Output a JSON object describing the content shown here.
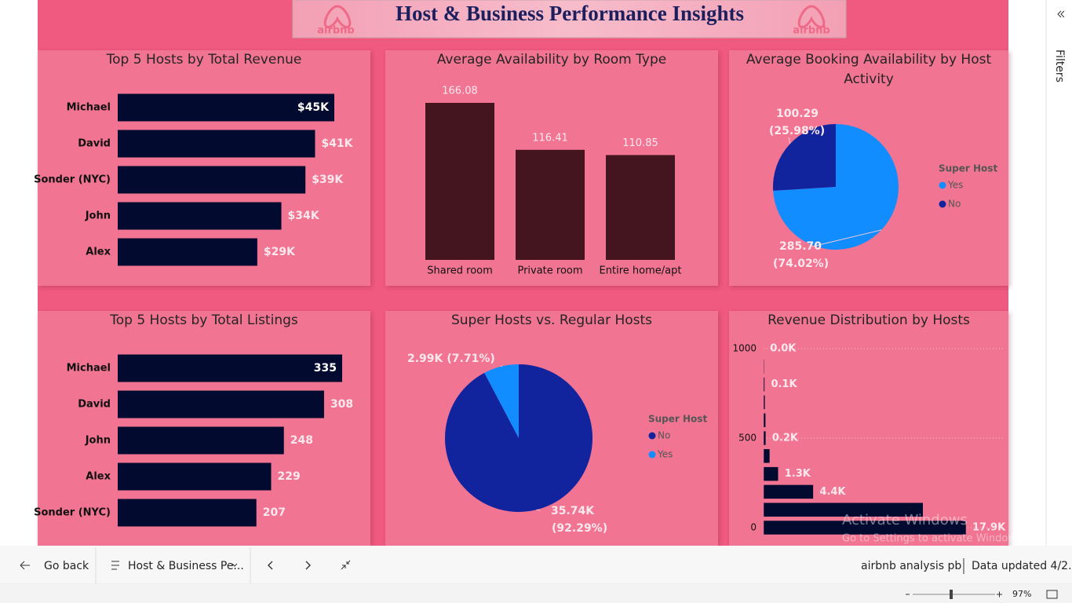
{
  "title": "Host & Business Performance Insights",
  "logo_text": "airbnb",
  "filters": "Filters",
  "chart_data": [
    {
      "type": "bar",
      "orientation": "horizontal",
      "title": "Top 5 Hosts by Total Revenue",
      "categories": [
        "Michael",
        "David",
        "Sonder (NYC)",
        "John",
        "Alex"
      ],
      "values": [
        45000,
        41000,
        39000,
        34000,
        29000
      ],
      "value_labels": [
        "$45K",
        "$41K",
        "$39K",
        "$34K",
        "$29K"
      ],
      "color": "#020b2f"
    },
    {
      "type": "bar",
      "orientation": "vertical",
      "title": "Average Availability by Room Type",
      "categories": [
        "Shared room",
        "Private room",
        "Entire home/apt"
      ],
      "values": [
        166.08,
        116.41,
        110.85
      ],
      "color": "#44141f"
    },
    {
      "type": "pie",
      "title": "Average Booking Availability by Host Activity",
      "legend_title": "Super Host",
      "categories": [
        "Yes",
        "No"
      ],
      "values": [
        285.7,
        100.29
      ],
      "value_labels": [
        "285.70",
        "100.29"
      ],
      "percents": [
        74.02,
        25.98
      ],
      "percent_labels": [
        "(74.02%)",
        "(25.98%)"
      ],
      "colors": [
        "#118dff",
        "#12239e"
      ]
    },
    {
      "type": "bar",
      "orientation": "horizontal",
      "title": "Top 5 Hosts by Total Listings",
      "categories": [
        "Michael",
        "David",
        "John",
        "Alex",
        "Sonder (NYC)"
      ],
      "values": [
        335,
        308,
        248,
        229,
        207
      ],
      "color": "#020b2f"
    },
    {
      "type": "pie",
      "title": "Super Hosts vs. Regular Hosts",
      "legend_title": "Super Host",
      "categories": [
        "No",
        "Yes"
      ],
      "values": [
        35740,
        2990
      ],
      "value_labels": [
        "35.74K",
        "2.99K"
      ],
      "percents": [
        92.29,
        7.71
      ],
      "percent_labels": [
        "(92.29%)",
        "(7.71%)"
      ],
      "colors": [
        "#12239e",
        "#118dff"
      ]
    },
    {
      "type": "histogram",
      "orientation": "horizontal",
      "title": "Revenue Distribution by Hosts",
      "y": [
        0,
        100,
        200,
        300,
        400,
        500,
        600,
        700,
        800,
        900,
        1000
      ],
      "values": [
        17900,
        14100,
        4400,
        1300,
        550,
        200,
        180,
        130,
        100,
        60,
        20
      ],
      "value_labels": [
        "17.9K",
        null,
        "4.4K",
        "1.3K",
        null,
        "0.2K",
        null,
        null,
        "0.1K",
        null,
        "0.0K"
      ],
      "ylim": [
        -50,
        1050
      ],
      "yticks": [
        0,
        500,
        1000
      ],
      "grid": true,
      "color": "#020b2f"
    }
  ],
  "watermark": {
    "title": "Activate Windows",
    "subtitle": "Go to Settings to activate Windows."
  },
  "footer": {
    "back": "Go back",
    "page": "Host & Business Pe...",
    "report": "airbnb analysis pb",
    "updated": "Data updated 4/2...",
    "zoom": "97%"
  }
}
